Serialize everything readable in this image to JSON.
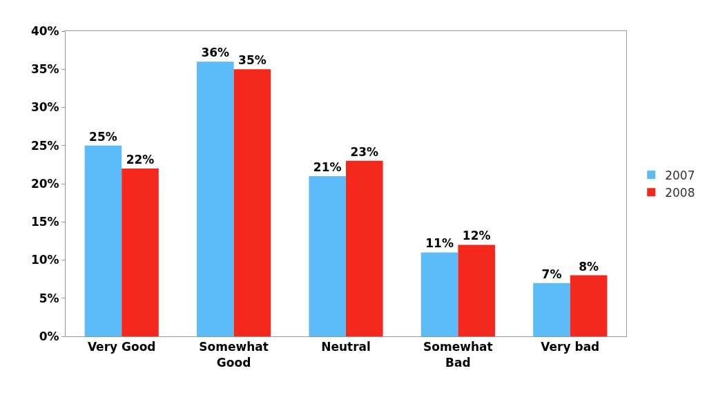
{
  "chart_data": {
    "type": "bar",
    "categories": [
      "Very Good",
      "Somewhat Good",
      "Neutral",
      "Somewhat Bad",
      "Very bad"
    ],
    "series": [
      {
        "name": "2007",
        "color": "#5bbcf7",
        "values": [
          25,
          36,
          21,
          11,
          7
        ],
        "value_labels": [
          "25%",
          "36%",
          "21%",
          "11%",
          "7%"
        ]
      },
      {
        "name": "2008",
        "color": "#f5281e",
        "values": [
          22,
          35,
          23,
          12,
          8
        ],
        "value_labels": [
          "22%",
          "35%",
          "23%",
          "12%",
          "8%"
        ]
      }
    ],
    "ylim": [
      0,
      40
    ],
    "yticks": [
      {
        "value": 0,
        "label": "0%"
      },
      {
        "value": 5,
        "label": "5%"
      },
      {
        "value": 10,
        "label": "10%"
      },
      {
        "value": 15,
        "label": "15%"
      },
      {
        "value": 20,
        "label": "20%"
      },
      {
        "value": 25,
        "label": "25%"
      },
      {
        "value": 30,
        "label": "30%"
      },
      {
        "value": 35,
        "label": "35%"
      },
      {
        "value": 40,
        "label": "40%"
      }
    ],
    "legend": "right"
  }
}
